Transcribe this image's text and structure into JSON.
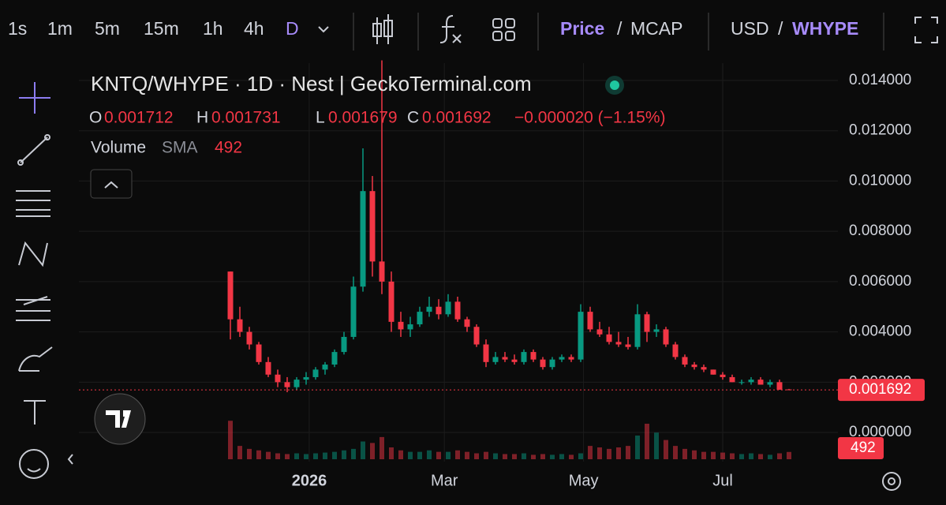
{
  "toolbar": {
    "timeframes": [
      "1s",
      "1m",
      "5m",
      "15m",
      "1h",
      "4h",
      "D"
    ],
    "price": "Price",
    "separator": "/",
    "mcap": "MCAP",
    "currency": "USD",
    "quote": "WHYPE"
  },
  "chart_data": {
    "type": "candlestick",
    "title": "KNTQ/WHYPE · 1D · Nest | GeckoTerminal.com",
    "ohlc_labels": [
      "O",
      "H",
      "L",
      "C"
    ],
    "change_label": "−0.000020 (−1.15%)",
    "volume_label": "Volume",
    "sma_label": "SMA",
    "volume_sma": 492,
    "up_color": "#089981",
    "down_color": "#f23645",
    "categories": [
      null,
      null,
      null,
      null,
      null,
      null,
      null,
      null,
      null,
      null,
      null,
      null,
      null,
      null,
      null,
      null,
      null,
      null,
      null,
      null,
      null,
      null,
      null,
      null,
      null,
      null,
      null,
      null,
      null,
      null,
      null,
      null,
      null,
      null,
      null,
      null,
      null,
      null,
      null,
      null,
      null,
      null,
      null,
      null,
      null,
      null,
      null,
      null,
      null,
      null,
      null,
      null,
      null,
      null,
      null,
      null,
      null,
      null,
      null,
      null
    ],
    "open": [
      0.0064,
      0.0045,
      0.004,
      0.0035,
      0.0028,
      0.0023,
      0.002,
      0.0018,
      0.0021,
      0.0022,
      0.0025,
      0.0027,
      0.0032,
      0.0038,
      0.0058,
      0.0096,
      0.0068,
      0.006,
      0.0044,
      0.0041,
      0.0043,
      0.0048,
      0.005,
      0.0047,
      0.0052,
      0.0045,
      0.0042,
      0.0035,
      0.0028,
      0.003,
      0.0029,
      0.0028,
      0.0032,
      0.0029,
      0.0026,
      0.0029,
      0.003,
      0.0029,
      0.0048,
      0.0041,
      0.0039,
      0.0036,
      0.0035,
      0.0034,
      0.0047,
      0.004,
      0.0041,
      0.0035,
      0.003,
      0.0027,
      0.0026,
      0.0025,
      0.0023,
      0.0022,
      0.002,
      0.002,
      0.0021,
      0.0019,
      0.002,
      0.001712
    ],
    "high": [
      0.0064,
      0.005,
      0.0042,
      0.0036,
      0.003,
      0.0025,
      0.0022,
      0.0022,
      0.0024,
      0.0026,
      0.0028,
      0.0033,
      0.004,
      0.0062,
      0.0113,
      0.0102,
      0.0148,
      0.0064,
      0.0048,
      0.0046,
      0.005,
      0.0054,
      0.0053,
      0.0055,
      0.0054,
      0.0046,
      0.0043,
      0.0037,
      0.0032,
      0.0032,
      0.0031,
      0.0033,
      0.0033,
      0.003,
      0.003,
      0.0031,
      0.0031,
      0.0051,
      0.005,
      0.0044,
      0.0042,
      0.004,
      0.0038,
      0.0051,
      0.0048,
      0.0043,
      0.0042,
      0.0036,
      0.0031,
      0.0028,
      0.0027,
      0.0025,
      0.0024,
      0.0023,
      0.0021,
      0.0022,
      0.0022,
      0.0021,
      0.0021,
      0.001731
    ],
    "low": [
      0.0037,
      0.0038,
      0.0033,
      0.0027,
      0.0022,
      0.0018,
      0.0016,
      0.0017,
      0.0019,
      0.0021,
      0.0023,
      0.0026,
      0.0031,
      0.0037,
      0.0056,
      0.0062,
      0.0055,
      0.004,
      0.0038,
      0.0038,
      0.0042,
      0.0046,
      0.0045,
      0.0046,
      0.0044,
      0.004,
      0.0034,
      0.0026,
      0.0027,
      0.0028,
      0.0027,
      0.0027,
      0.0028,
      0.0025,
      0.0025,
      0.0028,
      0.0028,
      0.0028,
      0.004,
      0.0038,
      0.0035,
      0.0034,
      0.0033,
      0.0033,
      0.0036,
      0.0038,
      0.0034,
      0.0029,
      0.0026,
      0.0025,
      0.0024,
      0.0023,
      0.0021,
      0.002,
      0.0019,
      0.0019,
      0.0019,
      0.0018,
      0.0017,
      0.001679
    ],
    "close": [
      0.0045,
      0.004,
      0.0035,
      0.0028,
      0.0023,
      0.002,
      0.0018,
      0.0021,
      0.0022,
      0.0025,
      0.0027,
      0.0032,
      0.0038,
      0.0058,
      0.0096,
      0.0068,
      0.006,
      0.0044,
      0.0041,
      0.0043,
      0.0048,
      0.005,
      0.0047,
      0.0052,
      0.0045,
      0.0042,
      0.0035,
      0.0028,
      0.003,
      0.0029,
      0.0028,
      0.0032,
      0.0029,
      0.0026,
      0.0029,
      0.003,
      0.0029,
      0.0048,
      0.0041,
      0.0039,
      0.0036,
      0.0035,
      0.0034,
      0.0047,
      0.004,
      0.0041,
      0.0035,
      0.003,
      0.0027,
      0.0026,
      0.0025,
      0.0023,
      0.0022,
      0.002,
      0.002,
      0.0021,
      0.0019,
      0.002,
      0.0017,
      0.001692
    ],
    "volume": [
      2600,
      900,
      700,
      600,
      500,
      400,
      350,
      400,
      350,
      400,
      450,
      500,
      600,
      700,
      1200,
      1100,
      1500,
      800,
      600,
      500,
      500,
      600,
      500,
      500,
      600,
      500,
      400,
      500,
      400,
      350,
      350,
      400,
      300,
      350,
      300,
      350,
      300,
      400,
      900,
      800,
      700,
      800,
      900,
      1600,
      2400,
      1800,
      1300,
      900,
      700,
      600,
      500,
      500,
      450,
      400,
      350,
      400,
      350,
      300,
      400,
      492
    ],
    "xticks": [
      {
        "value": 8.33,
        "label": "2026"
      },
      {
        "value": 22.6,
        "label": "Mar"
      },
      {
        "value": 37.3,
        "label": "May"
      },
      {
        "value": 52,
        "label": "Jul"
      }
    ],
    "ylim": [
      -0.00116,
      0.01469
    ],
    "yticks": [
      {
        "value": 0,
        "label": "0.000000"
      },
      {
        "value": 0.002,
        "label": "0.002000"
      },
      {
        "value": 0.004,
        "label": "0.004000"
      },
      {
        "value": 0.006,
        "label": "0.006000"
      },
      {
        "value": 0.008,
        "label": "0.008000"
      },
      {
        "value": 0.01,
        "label": "0.010000"
      },
      {
        "value": 0.012,
        "label": "0.012000"
      },
      {
        "value": 0.014,
        "label": "0.014000"
      }
    ],
    "grid": true
  }
}
